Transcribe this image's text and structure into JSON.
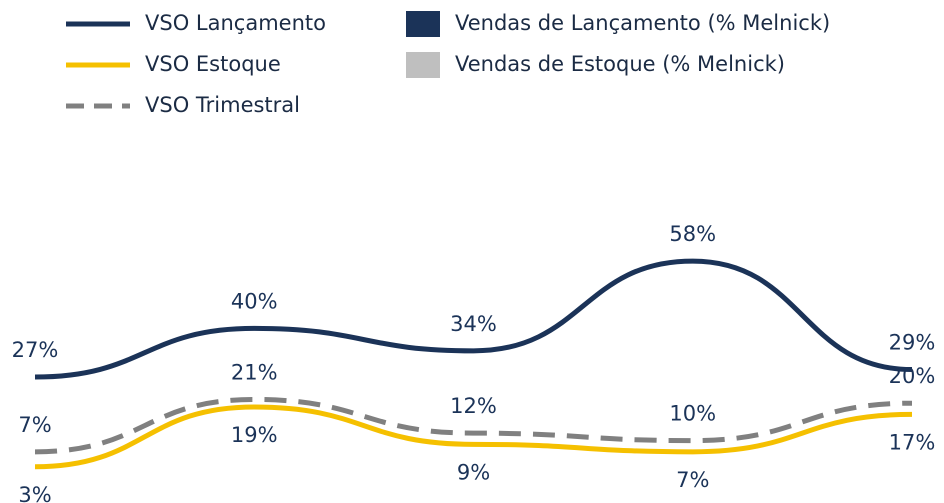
{
  "chart_data": {
    "type": "line",
    "categories": [
      null,
      null,
      null,
      null,
      null
    ],
    "series": [
      {
        "name": "VSO Lançamento",
        "color": "#1b3358",
        "dash": false,
        "label_side": "above",
        "values": [
          27,
          40,
          34,
          58,
          29
        ],
        "value_labels": [
          "27%",
          "40%",
          "34%",
          "58%",
          "29%"
        ]
      },
      {
        "name": "VSO Estoque",
        "color": "#f5c000",
        "dash": false,
        "label_side": "below",
        "values": [
          3,
          19,
          9,
          7,
          17
        ],
        "value_labels": [
          "3%",
          "19%",
          "9%",
          "7%",
          "17%"
        ]
      },
      {
        "name": "VSO Trimestral",
        "color": "#808080",
        "dash": true,
        "label_side": "above",
        "values": [
          7,
          21,
          12,
          10,
          20
        ],
        "value_labels": [
          "7%",
          "21%",
          "12%",
          "10%",
          "20%"
        ]
      }
    ],
    "bar_series": [
      {
        "name": "Vendas de Lançamento (% Melnick)",
        "color": "#1b3358"
      },
      {
        "name": "Vendas de Estoque (% Melnick)",
        "color": "#bfbfbf"
      }
    ]
  }
}
